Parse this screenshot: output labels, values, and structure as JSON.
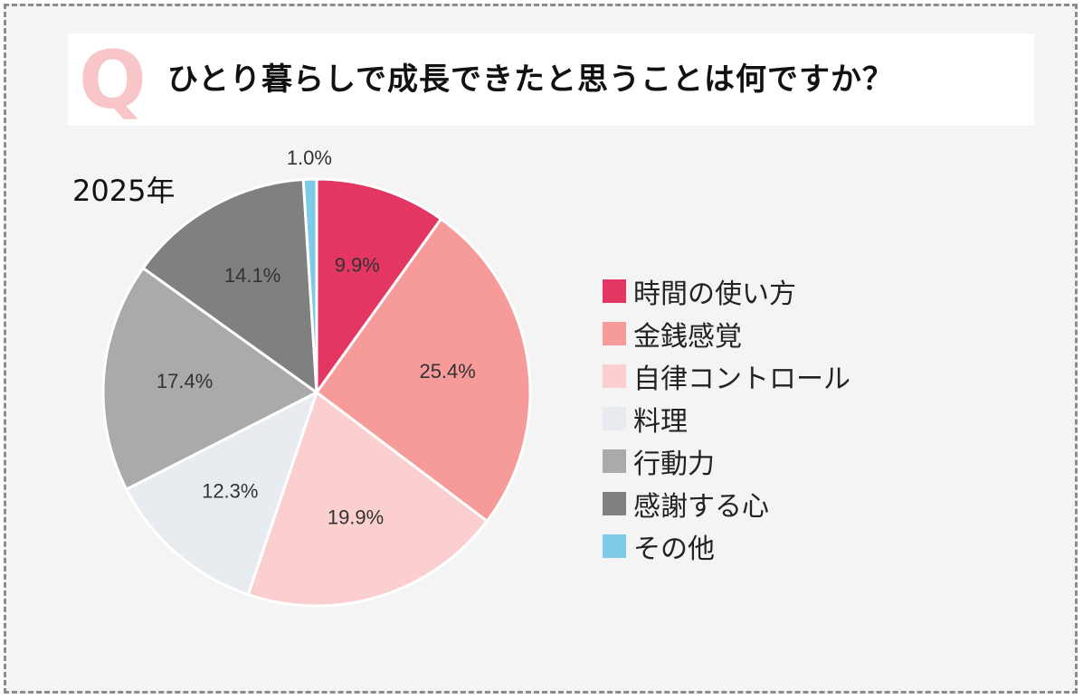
{
  "question": {
    "letter": "Q",
    "text": "ひとり暮らしで成長できたと思うことは何ですか？"
  },
  "chart_data": {
    "type": "pie",
    "title": "2025年",
    "slices": [
      {
        "label": "時間の使い方",
        "value": 9.9,
        "value_label": "9.9%",
        "color": "#e33663"
      },
      {
        "label": "金銭感覚",
        "value": 25.4,
        "value_label": "25.4%",
        "color": "#f79a9a"
      },
      {
        "label": "自律コントロール",
        "value": 19.9,
        "value_label": "19.9%",
        "color": "#fbcfcf"
      },
      {
        "label": "料理",
        "value": 12.3,
        "value_label": "12.3%",
        "color": "#e8ecf0"
      },
      {
        "label": "行動力",
        "value": 17.4,
        "value_label": "17.4%",
        "color": "#aaaaaa"
      },
      {
        "label": "感謝する心",
        "value": 14.1,
        "value_label": "14.1%",
        "color": "#808080"
      },
      {
        "label": "その他",
        "value": 1.0,
        "value_label": "1.0%",
        "color": "#7ecbe8"
      }
    ]
  }
}
